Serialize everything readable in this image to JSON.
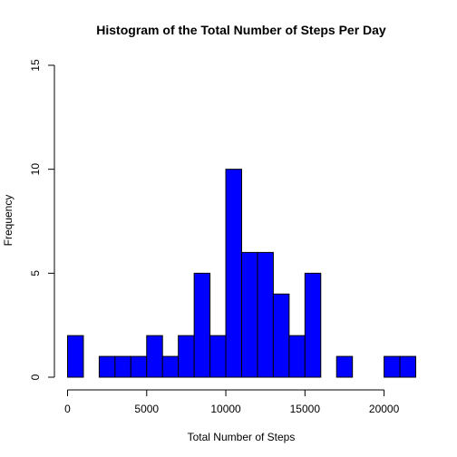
{
  "chart_data": {
    "type": "bar",
    "title": "Histogram of the Total Number of Steps Per Day",
    "xlabel": "Total Number of Steps",
    "ylabel": "Frequency",
    "xlim": [
      0,
      22000
    ],
    "ylim": [
      0,
      15
    ],
    "xticks": [
      0,
      5000,
      10000,
      15000,
      20000
    ],
    "xtick_labels": [
      "0",
      "5000",
      "10000",
      "15000",
      "20000"
    ],
    "yticks": [
      0,
      5,
      10,
      15
    ],
    "ytick_labels": [
      "0",
      "5",
      "10",
      "15"
    ],
    "bin_width": 1000,
    "bins": [
      {
        "start": 0,
        "end": 1000,
        "count": 2
      },
      {
        "start": 1000,
        "end": 2000,
        "count": 0
      },
      {
        "start": 2000,
        "end": 3000,
        "count": 1
      },
      {
        "start": 3000,
        "end": 4000,
        "count": 1
      },
      {
        "start": 4000,
        "end": 5000,
        "count": 1
      },
      {
        "start": 5000,
        "end": 6000,
        "count": 2
      },
      {
        "start": 6000,
        "end": 7000,
        "count": 1
      },
      {
        "start": 7000,
        "end": 8000,
        "count": 2
      },
      {
        "start": 8000,
        "end": 9000,
        "count": 5
      },
      {
        "start": 9000,
        "end": 10000,
        "count": 2
      },
      {
        "start": 10000,
        "end": 11000,
        "count": 10
      },
      {
        "start": 11000,
        "end": 12000,
        "count": 6
      },
      {
        "start": 12000,
        "end": 13000,
        "count": 6
      },
      {
        "start": 13000,
        "end": 14000,
        "count": 4
      },
      {
        "start": 14000,
        "end": 15000,
        "count": 2
      },
      {
        "start": 15000,
        "end": 16000,
        "count": 5
      },
      {
        "start": 16000,
        "end": 17000,
        "count": 0
      },
      {
        "start": 17000,
        "end": 18000,
        "count": 1
      },
      {
        "start": 18000,
        "end": 19000,
        "count": 0
      },
      {
        "start": 19000,
        "end": 20000,
        "count": 0
      },
      {
        "start": 20000,
        "end": 21000,
        "count": 1
      },
      {
        "start": 21000,
        "end": 22000,
        "count": 1
      }
    ],
    "bar_color": "#0000ff",
    "bar_border_color": "#000000",
    "grid": false,
    "legend": "none"
  }
}
